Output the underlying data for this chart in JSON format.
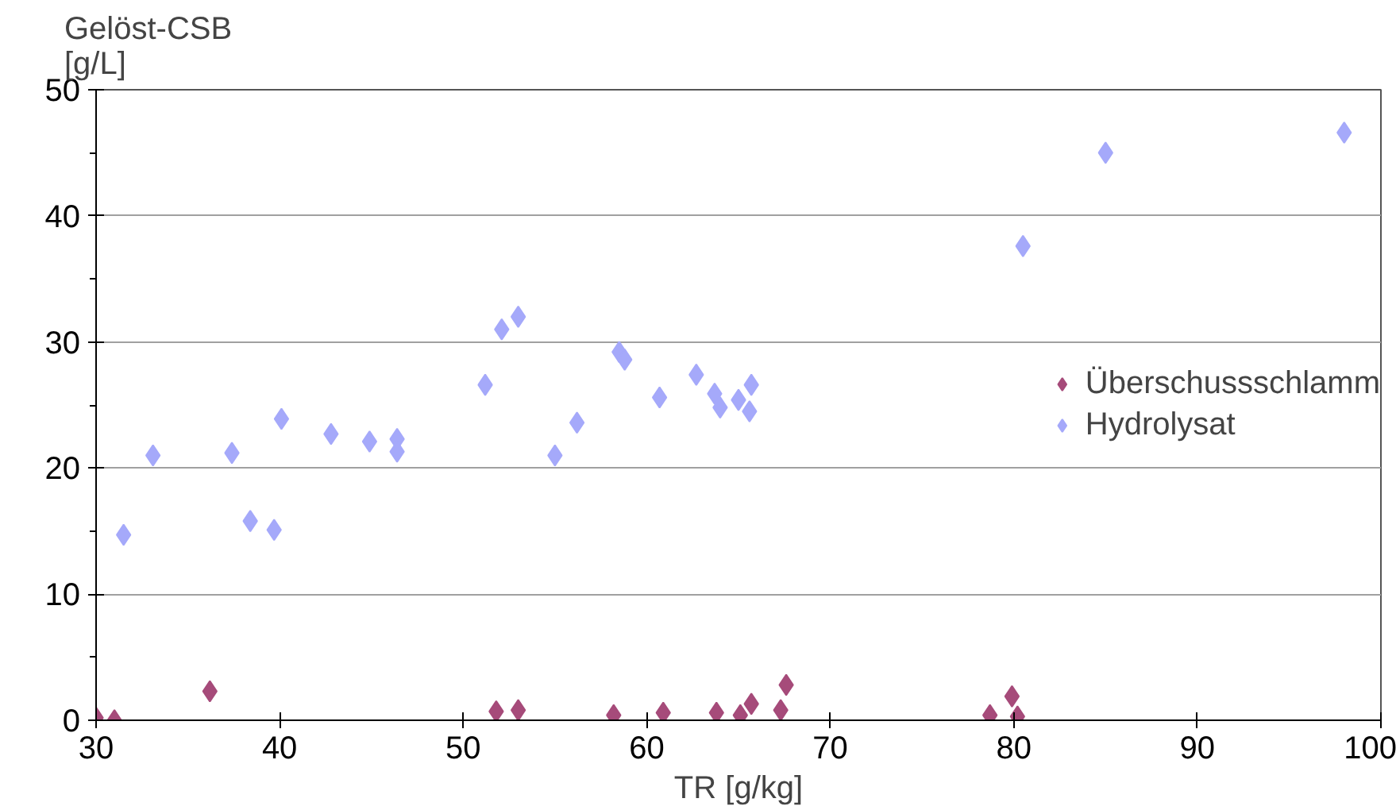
{
  "chart_data": {
    "type": "scatter",
    "xlabel": "TR [g/kg]",
    "ylabel": "Gelöst-CSB\n[g/L]",
    "xlim": [
      30,
      100
    ],
    "xticks": [
      30,
      40,
      50,
      60,
      70,
      80,
      90,
      100
    ],
    "ylim": [
      0,
      50
    ],
    "yticks": [
      0,
      {
        "value": 5,
        "label": null
      },
      10,
      {
        "value": 15,
        "label": null
      },
      20,
      {
        "value": 25,
        "label": null
      },
      30,
      {
        "value": 35,
        "label": null
      },
      40,
      {
        "value": 45,
        "label": null
      },
      50
    ],
    "grid": "y",
    "legend": "right",
    "marker": "diamond",
    "series": [
      {
        "name": "Überschussschlamm",
        "color": "#a64b7a",
        "x": [
          30,
          31,
          36.2,
          51.8,
          53,
          58.2,
          60.9,
          63.8,
          65.1,
          65.7,
          67.3,
          67.6,
          78.7,
          79.9,
          80.2
        ],
        "values": [
          0.2,
          0,
          2.3,
          0.7,
          0.8,
          0.4,
          0.6,
          0.6,
          0.4,
          1.3,
          0.8,
          2.8,
          0.4,
          1.9,
          0.3
        ]
      },
      {
        "name": "Hydrolysat",
        "color": "#a5a9fa",
        "x": [
          31.5,
          33.1,
          37.4,
          38.4,
          39.7,
          40.1,
          42.8,
          44.9,
          46.4,
          46.4,
          51.2,
          52.1,
          53,
          55,
          56.2,
          58.5,
          58.8,
          60.7,
          62.7,
          63.7,
          64,
          65,
          65.7,
          65.6,
          80.5,
          85,
          98
        ],
        "values": [
          14.7,
          21,
          21.2,
          15.8,
          15.1,
          23.9,
          22.7,
          22.1,
          22.3,
          21.3,
          26.6,
          31,
          32,
          21,
          23.6,
          29.2,
          28.6,
          25.6,
          27.4,
          25.9,
          24.8,
          25.4,
          26.6,
          24.5,
          37.6,
          45,
          46.6
        ]
      }
    ]
  }
}
